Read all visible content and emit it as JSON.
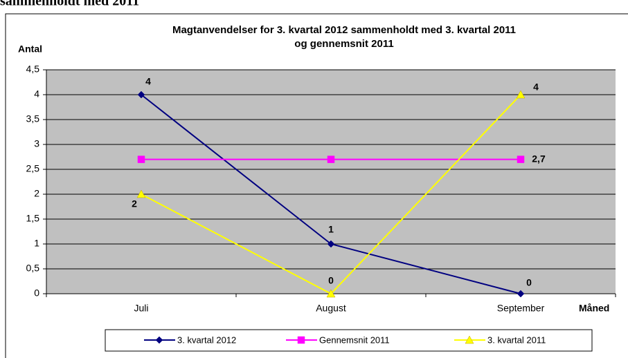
{
  "caption": "sammenholdt med 2011",
  "chart_data": {
    "type": "line",
    "title": [
      "Magtanvendelser for 3. kvartal 2012 sammenholdt med 3. kvartal 2011",
      "og gennemsnit 2011"
    ],
    "y_label": "Antal",
    "x_label": "Måned",
    "categories": [
      "Juli",
      "August",
      "September"
    ],
    "series": [
      {
        "name": "3. kvartal 2012",
        "color": "#000080",
        "marker": "diamond",
        "values": [
          4,
          1,
          0
        ],
        "value_labels": [
          "4",
          "1",
          "0"
        ]
      },
      {
        "name": "Gennemsnit 2011",
        "color": "#ff00ff",
        "marker": "square",
        "values": [
          2.7,
          2.7,
          2.7
        ],
        "value_labels": [
          null,
          null,
          "2,7"
        ]
      },
      {
        "name": "3. kvartal 2011",
        "color": "#ffff00",
        "marker": "triangle",
        "values": [
          2,
          0,
          4
        ],
        "value_labels": [
          "2",
          "0",
          "4"
        ]
      }
    ],
    "ylim": [
      0,
      4.5
    ],
    "yticks": [
      0,
      {
        "value": 0.5,
        "label": "0,5"
      },
      1,
      {
        "value": 1.5,
        "label": "1,5"
      },
      2,
      {
        "value": 2.5,
        "label": "2,5"
      },
      3,
      {
        "value": 3.5,
        "label": "3,5"
      },
      4,
      {
        "value": 4.5,
        "label": "4,5"
      }
    ],
    "grid": true,
    "legend": "bottom"
  }
}
